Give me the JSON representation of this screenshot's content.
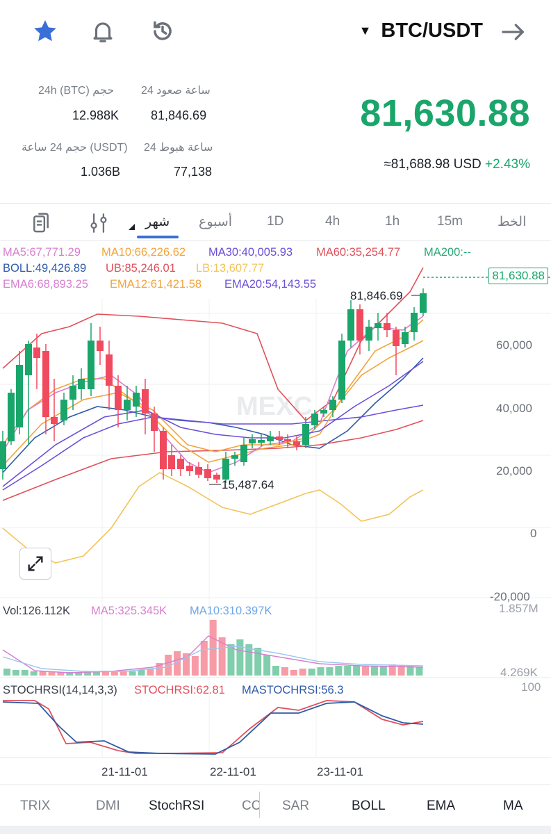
{
  "header": {
    "pair": "BTC/USDT",
    "icons": [
      "star-icon",
      "bell-icon",
      "history-icon",
      "arrow-right-icon",
      "caret-down-icon"
    ]
  },
  "stats": {
    "high_label": "24 ساعة صعود",
    "high_value": "81,846.69",
    "vol_btc_label": "24h (BTC) حجم",
    "vol_btc_value": "12.988K",
    "low_label": "24 ساعة هبوط",
    "low_value": "77,138",
    "vol_usdt_label": "حجم 24 ساعة (USDT)",
    "vol_usdt_value": "1.036B",
    "price": "81,630.88",
    "usd_value": "≈81,688.98 USD",
    "change": "+2.43%"
  },
  "timeframes": {
    "line": "الخط",
    "m15": "15m",
    "h1": "1h",
    "h4": "4h",
    "d1": "1D",
    "week": "أسبوع",
    "month": "شهر"
  },
  "legend": {
    "ma5": "MA5:67,771.29",
    "ma10": "MA10:66,226.62",
    "ma30": "MA30:40,005.93",
    "ma60": "MA60:35,254.77",
    "ma200": "MA200:--",
    "boll": "BOLL:49,426.89",
    "ub": "UB:85,246.01",
    "lb": "LB:13,607.77",
    "ema6": "EMA6:68,893.25",
    "ema12": "EMA12:61,421.58",
    "ema20": "EMA20:54,143.55"
  },
  "chart": {
    "watermark": "MEXC",
    "high_marker": "81,846.69",
    "low_marker": "15,487.64",
    "last_price_tag": "81,630.88",
    "y_axis": [
      "60,000",
      "40,000",
      "20,000",
      "0",
      "-20,000"
    ],
    "x_axis": [
      "21-11-01",
      "22-11-01",
      "23-11-01"
    ]
  },
  "volume": {
    "vol": "Vol:126.112K",
    "ma5": "MA5:325.345K",
    "ma10": "MA10:310.397K",
    "axis_top": "1.857M",
    "axis_bottom": "4.269K"
  },
  "stochrsi": {
    "label": "STOCHRSI(14,14,3,3)",
    "value": "STOCHRSI:62.81",
    "ma": "MASTOCHRSI:56.3",
    "axis_top": "100"
  },
  "indicators": {
    "trix": "TRIX",
    "dmi": "DMI",
    "stochrsi": "StochRSI",
    "cci": "CC",
    "sar": "SAR",
    "boll": "BOLL",
    "ema": "EMA",
    "ma": "MA"
  },
  "colors": {
    "up": "#1aa56a",
    "down": "#f04a5f",
    "accent": "#3b6fd8"
  }
}
